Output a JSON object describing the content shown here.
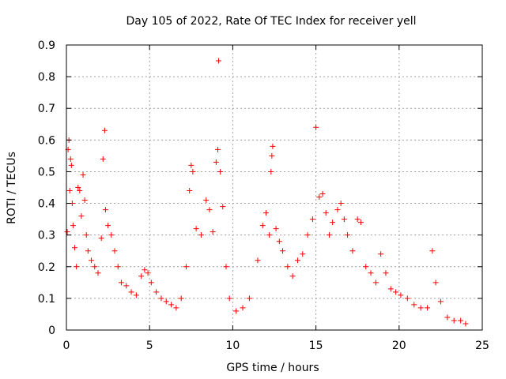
{
  "chart_data": {
    "type": "scatter",
    "title": "Day 105 of 2022, Rate Of TEC Index for receiver yell",
    "xlabel": "GPS time / hours",
    "ylabel": "ROTI / TECUs",
    "xlim": [
      0,
      25
    ],
    "ylim": [
      0,
      0.9
    ],
    "xticks": [
      0,
      5,
      10,
      15,
      20,
      25
    ],
    "yticks": [
      0,
      0.1,
      0.2,
      0.3,
      0.4,
      0.5,
      0.6,
      0.7,
      0.8,
      0.9
    ],
    "xtick_labels": [
      "0",
      "5",
      "10",
      "15",
      "20",
      "25"
    ],
    "ytick_labels": [
      "0",
      "0.1",
      "0.2",
      "0.3",
      "0.4",
      "0.5",
      "0.6",
      "0.7",
      "0.8",
      "0.9"
    ],
    "grid": true,
    "marker": "+",
    "color": "#ff0000",
    "series": [
      {
        "name": "ROTI",
        "points": [
          [
            0.05,
            0.31
          ],
          [
            0.1,
            0.57
          ],
          [
            0.15,
            0.6
          ],
          [
            0.2,
            0.44
          ],
          [
            0.25,
            0.54
          ],
          [
            0.3,
            0.52
          ],
          [
            0.35,
            0.4
          ],
          [
            0.4,
            0.33
          ],
          [
            0.5,
            0.26
          ],
          [
            0.6,
            0.2
          ],
          [
            0.7,
            0.45
          ],
          [
            0.8,
            0.44
          ],
          [
            0.9,
            0.36
          ],
          [
            1.0,
            0.49
          ],
          [
            1.1,
            0.41
          ],
          [
            1.2,
            0.3
          ],
          [
            1.3,
            0.25
          ],
          [
            1.5,
            0.22
          ],
          [
            1.7,
            0.2
          ],
          [
            1.9,
            0.18
          ],
          [
            2.1,
            0.29
          ],
          [
            2.2,
            0.54
          ],
          [
            2.3,
            0.63
          ],
          [
            2.35,
            0.38
          ],
          [
            2.5,
            0.33
          ],
          [
            2.7,
            0.3
          ],
          [
            2.9,
            0.25
          ],
          [
            3.1,
            0.2
          ],
          [
            3.3,
            0.15
          ],
          [
            3.6,
            0.14
          ],
          [
            3.9,
            0.12
          ],
          [
            4.2,
            0.11
          ],
          [
            4.5,
            0.17
          ],
          [
            4.7,
            0.19
          ],
          [
            4.9,
            0.18
          ],
          [
            5.1,
            0.15
          ],
          [
            5.4,
            0.12
          ],
          [
            5.7,
            0.1
          ],
          [
            6.0,
            0.09
          ],
          [
            6.3,
            0.08
          ],
          [
            6.6,
            0.07
          ],
          [
            6.9,
            0.1
          ],
          [
            7.2,
            0.2
          ],
          [
            7.4,
            0.44
          ],
          [
            7.5,
            0.52
          ],
          [
            7.6,
            0.5
          ],
          [
            7.8,
            0.32
          ],
          [
            8.1,
            0.3
          ],
          [
            8.4,
            0.41
          ],
          [
            8.6,
            0.38
          ],
          [
            8.8,
            0.31
          ],
          [
            9.0,
            0.53
          ],
          [
            9.1,
            0.57
          ],
          [
            9.15,
            0.85
          ],
          [
            9.25,
            0.5
          ],
          [
            9.4,
            0.39
          ],
          [
            9.6,
            0.2
          ],
          [
            9.8,
            0.1
          ],
          [
            10.2,
            0.06
          ],
          [
            10.6,
            0.07
          ],
          [
            11.0,
            0.1
          ],
          [
            11.5,
            0.22
          ],
          [
            11.8,
            0.33
          ],
          [
            12.0,
            0.37
          ],
          [
            12.2,
            0.3
          ],
          [
            12.3,
            0.5
          ],
          [
            12.35,
            0.55
          ],
          [
            12.4,
            0.58
          ],
          [
            12.6,
            0.32
          ],
          [
            12.8,
            0.28
          ],
          [
            13.0,
            0.25
          ],
          [
            13.3,
            0.2
          ],
          [
            13.6,
            0.17
          ],
          [
            13.9,
            0.22
          ],
          [
            14.2,
            0.24
          ],
          [
            14.5,
            0.3
          ],
          [
            14.8,
            0.35
          ],
          [
            15.0,
            0.64
          ],
          [
            15.2,
            0.42
          ],
          [
            15.4,
            0.43
          ],
          [
            15.6,
            0.37
          ],
          [
            15.8,
            0.3
          ],
          [
            16.0,
            0.34
          ],
          [
            16.3,
            0.38
          ],
          [
            16.5,
            0.4
          ],
          [
            16.7,
            0.35
          ],
          [
            16.9,
            0.3
          ],
          [
            17.2,
            0.25
          ],
          [
            17.5,
            0.35
          ],
          [
            17.7,
            0.34
          ],
          [
            18.0,
            0.2
          ],
          [
            18.3,
            0.18
          ],
          [
            18.6,
            0.15
          ],
          [
            18.9,
            0.24
          ],
          [
            19.2,
            0.18
          ],
          [
            19.5,
            0.13
          ],
          [
            19.8,
            0.12
          ],
          [
            20.1,
            0.11
          ],
          [
            20.5,
            0.1
          ],
          [
            20.9,
            0.08
          ],
          [
            21.3,
            0.07
          ],
          [
            21.7,
            0.07
          ],
          [
            22.0,
            0.25
          ],
          [
            22.2,
            0.15
          ],
          [
            22.5,
            0.09
          ],
          [
            22.9,
            0.04
          ],
          [
            23.3,
            0.03
          ],
          [
            23.7,
            0.03
          ],
          [
            24.0,
            0.02
          ]
        ]
      }
    ]
  }
}
